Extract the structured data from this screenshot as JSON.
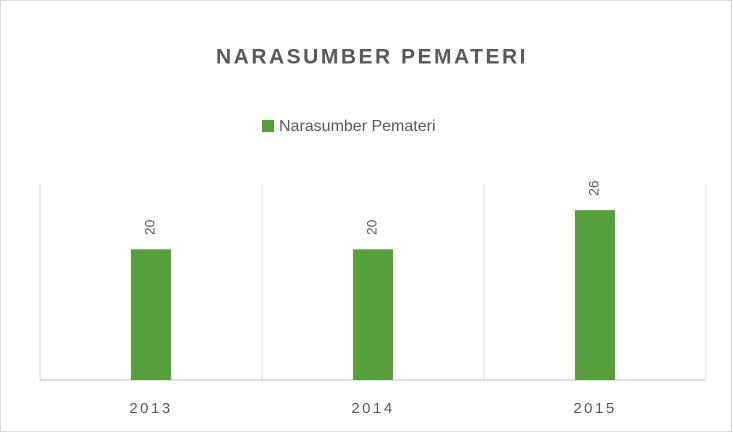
{
  "chart_data": {
    "type": "bar",
    "title": "NARASUMBER PEMATERI",
    "categories": [
      "2013",
      "2014",
      "2015"
    ],
    "series": [
      {
        "name": "Narasumber Pemateri",
        "color": "#55a03c",
        "values": [
          20,
          20,
          26
        ]
      }
    ],
    "ylim": [
      0,
      30
    ],
    "legend": "top",
    "data_labels_rotated": true
  }
}
